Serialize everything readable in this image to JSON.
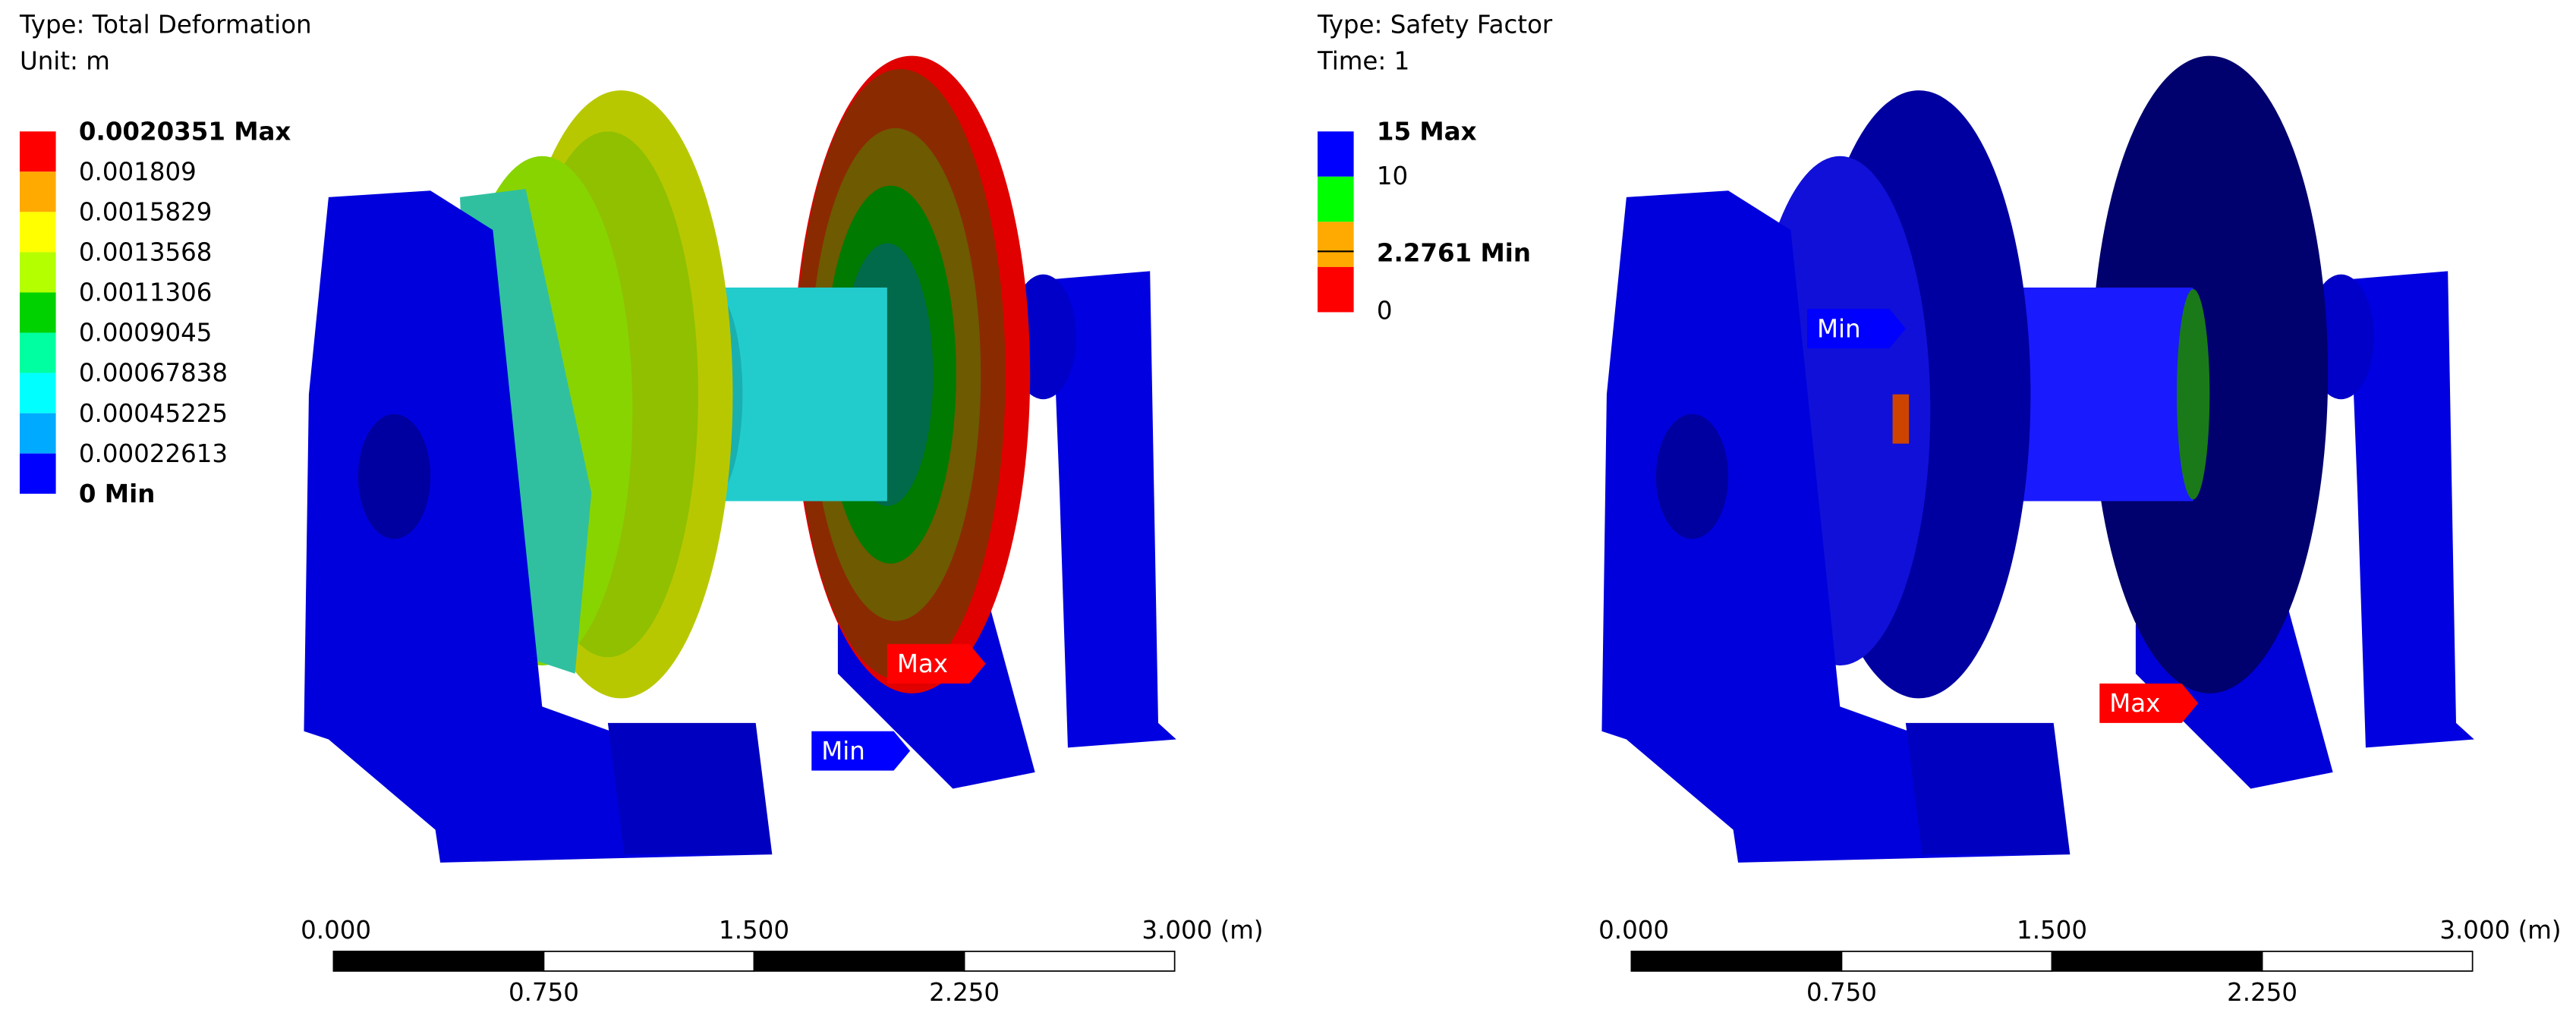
{
  "panels": [
    {
      "type_label": "Type: Total Deformation",
      "sub_label": "Unit: m",
      "legend": {
        "labels": [
          "0.0020351 Max",
          "0.001809",
          "0.0015829",
          "0.0013568",
          "0.0011306",
          "0.0009045",
          "0.00067838",
          "0.00045225",
          "0.00022613",
          "0 Min"
        ],
        "colors": [
          "#ff0000",
          "#ffaa00",
          "#ffff00",
          "#b4ff00",
          "#00d200",
          "#00ffa0",
          "#00ffff",
          "#00aaff",
          "#0000ff"
        ]
      },
      "probes": [
        {
          "label": "Max",
          "color": "#ff0000"
        },
        {
          "label": "Min",
          "color": "#0000ff"
        }
      ],
      "scale": {
        "labels_top": [
          "0.000",
          "1.500",
          "3.000 (m)"
        ],
        "labels_bottom": [
          "0.750",
          "2.250"
        ]
      }
    },
    {
      "type_label": "Type: Safety Factor",
      "sub_label": "Time: 1",
      "legend": {
        "labels": [
          "15 Max",
          "10",
          "2.2761 Min",
          "0"
        ],
        "colors": [
          "#0000ff",
          "#00ff00",
          "#ffaa00",
          "#ff0000"
        ]
      },
      "probes": [
        {
          "label": "Min",
          "color": "#0000ff"
        },
        {
          "label": "Max",
          "color": "#ff0000"
        }
      ],
      "scale": {
        "labels_top": [
          "0.000",
          "1.500",
          "3.000 (m)"
        ],
        "labels_bottom": [
          "0.750",
          "2.250"
        ]
      }
    }
  ]
}
